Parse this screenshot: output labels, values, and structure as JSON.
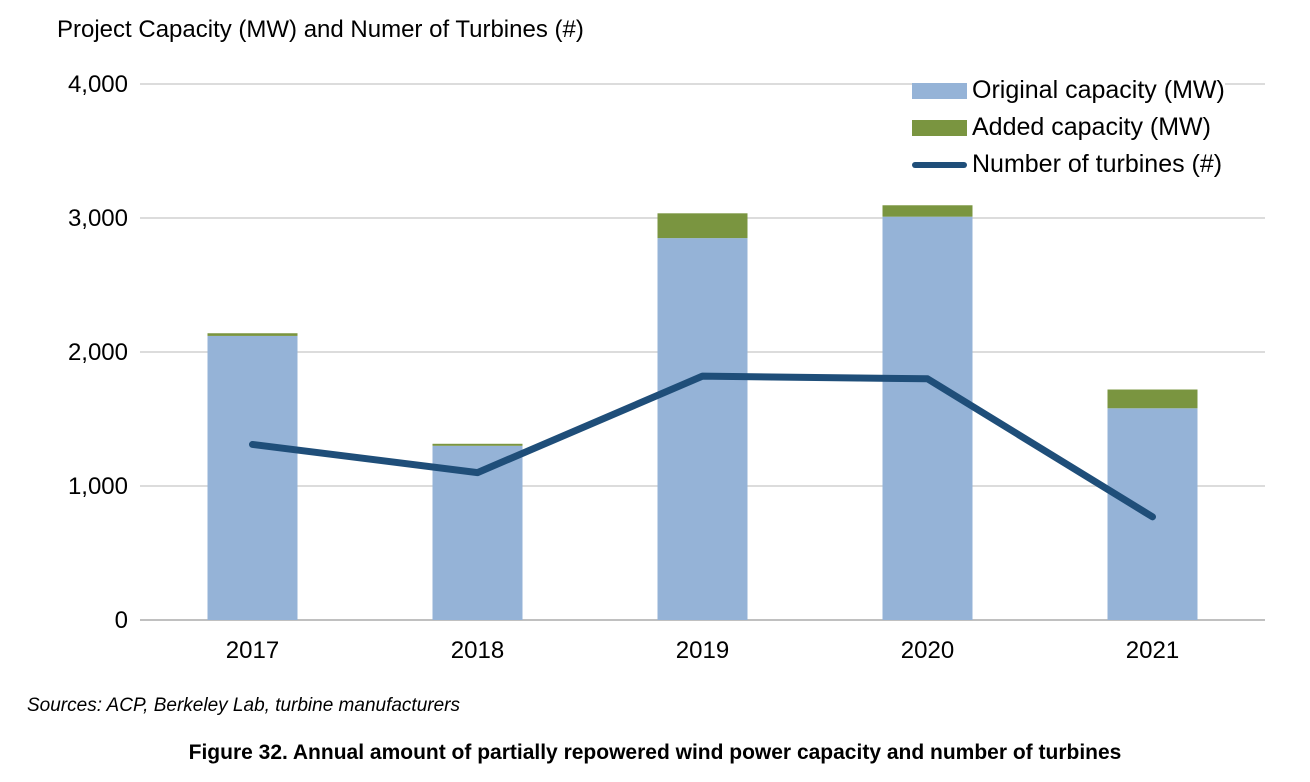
{
  "title": "Project Capacity (MW) and Numer of Turbines (#)",
  "source_note": "Sources: ACP, Berkeley Lab, turbine manufacturers",
  "caption": "Figure 32. Annual amount of partially repowered wind power capacity and number of turbines",
  "colors": {
    "original_capacity": "#95B3D7",
    "added_capacity": "#7A9540",
    "turbine_line": "#1F4E79",
    "gridline": "#DCDCDC",
    "axis_line": "#C0C0C0",
    "text": "#000000"
  },
  "chart_data": {
    "type": "bar",
    "subtype": "stacked-bar-with-line-overlay",
    "title": "Project Capacity (MW) and Numer of Turbines (#)",
    "categories": [
      "2017",
      "2018",
      "2019",
      "2020",
      "2021"
    ],
    "series": [
      {
        "name": "Original capacity (MW)",
        "type": "bar",
        "stack": "capacity",
        "color": "#95B3D7",
        "values": [
          2120,
          1300,
          2850,
          3010,
          1580
        ]
      },
      {
        "name": "Added capacity (MW)",
        "type": "bar",
        "stack": "capacity",
        "color": "#7A9540",
        "values": [
          20,
          15,
          185,
          85,
          140
        ]
      },
      {
        "name": "Number of turbines (#)",
        "type": "line",
        "color": "#1F4E79",
        "values": [
          1310,
          1100,
          1820,
          1800,
          770
        ]
      }
    ],
    "xlabel": "",
    "ylabel": "",
    "ylim": [
      0,
      4000
    ],
    "yticks": [
      0,
      1000,
      2000,
      3000,
      4000
    ],
    "ytick_labels": [
      "0",
      "1,000",
      "2,000",
      "3,000",
      "4,000"
    ],
    "grid": "horizontal",
    "legend_position": "top-right"
  }
}
